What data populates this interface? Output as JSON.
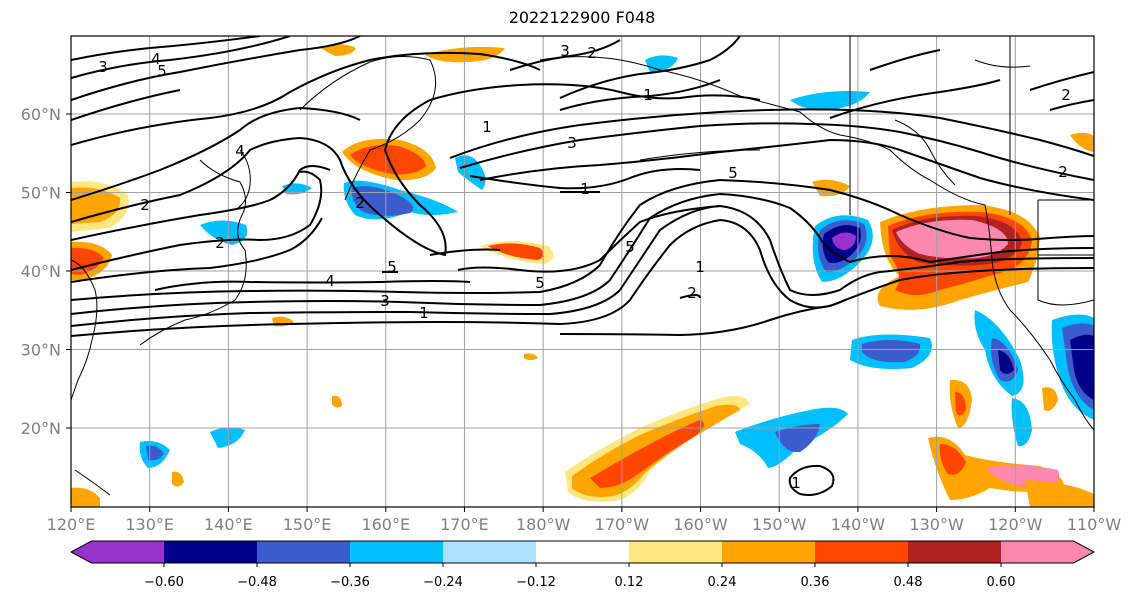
{
  "title": "2022122900 F048",
  "map": {
    "lon_labels": [
      "120°E",
      "130°E",
      "140°E",
      "150°E",
      "160°E",
      "170°E",
      "180°W",
      "170°W",
      "160°W",
      "150°W",
      "140°W",
      "130°W",
      "120°W",
      "110°W"
    ],
    "lat_labels": [
      "60°N",
      "50°N",
      "40°N",
      "30°N",
      "20°N"
    ],
    "contour_labels": [
      "3",
      "4",
      "5",
      "2",
      "1",
      "3",
      "4",
      "2",
      "5",
      "2",
      "1",
      "3",
      "4",
      "5",
      "1",
      "2",
      "1",
      "5",
      "2",
      "1",
      "3",
      "2",
      "5",
      "1",
      "2"
    ]
  },
  "colorbar": {
    "colors": [
      "#9932CC",
      "#00008B",
      "#3A5CCC",
      "#00BFFF",
      "#B0E0FF",
      "#FFFFFF",
      "#FFE680",
      "#FFA500",
      "#FF4500",
      "#B22222",
      "#FF88B0"
    ],
    "tick_labels": [
      "−0.60",
      "−0.48",
      "−0.36",
      "−0.24",
      "−0.12",
      "0.12",
      "0.24",
      "0.36",
      "0.48",
      "0.60"
    ]
  }
}
